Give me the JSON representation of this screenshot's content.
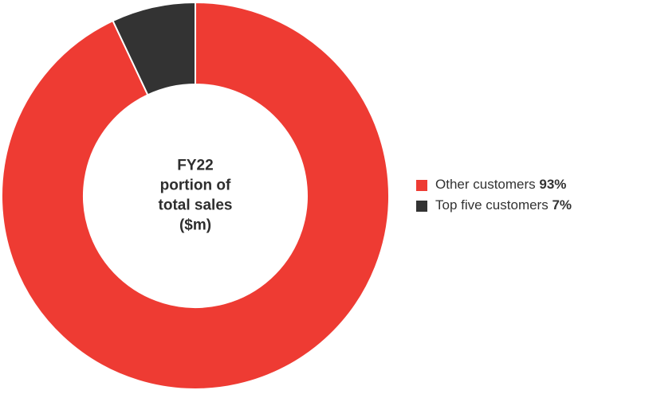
{
  "chart_data": {
    "type": "donut",
    "center_label": [
      "FY22",
      "portion of",
      "total sales",
      "($m)"
    ],
    "categories": [
      "Other customers",
      "Top five customers"
    ],
    "values": [
      93,
      7
    ],
    "value_labels": [
      "93%",
      "7%"
    ],
    "colors": [
      "#ee3b33",
      "#333333"
    ],
    "legend": "right"
  }
}
